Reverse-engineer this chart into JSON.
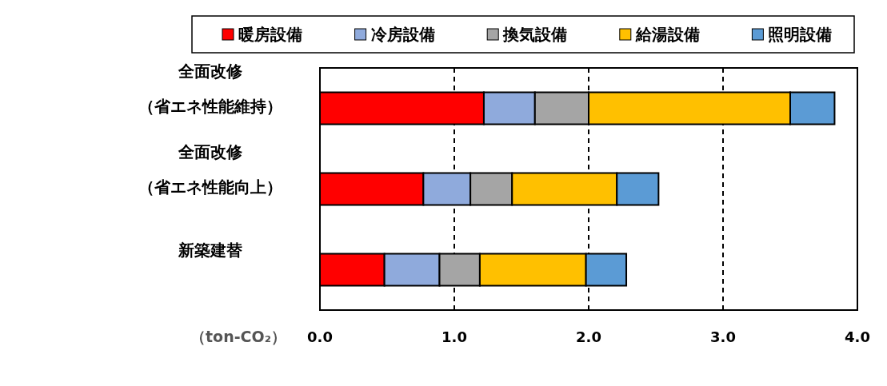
{
  "chart_data": {
    "type": "bar",
    "orientation": "horizontal",
    "stacked": true,
    "categories": [
      "全面改修（省エネ性能維持）",
      "全面改修（省エネ性能向上）",
      "新築建替"
    ],
    "series": [
      {
        "name": "暖房設備",
        "color": "#ff0000",
        "values": [
          1.22,
          0.77,
          0.48
        ]
      },
      {
        "name": "冷房設備",
        "color": "#8faadc",
        "values": [
          0.38,
          0.35,
          0.41
        ]
      },
      {
        "name": "換気設備",
        "color": "#a5a5a5",
        "values": [
          0.4,
          0.31,
          0.3
        ]
      },
      {
        "name": "給湯設備",
        "color": "#ffc000",
        "values": [
          1.5,
          0.78,
          0.79
        ]
      },
      {
        "name": "照明設備",
        "color": "#5b9bd5",
        "values": [
          0.33,
          0.31,
          0.3
        ]
      }
    ],
    "xlabel": "（ton-CO₂）",
    "xlim": [
      0,
      4
    ],
    "xticks": [
      {
        "value": 0,
        "label": "0.0"
      },
      {
        "value": 1,
        "label": "1.0"
      },
      {
        "value": 2,
        "label": "2.0"
      },
      {
        "value": 3,
        "label": "3.0"
      },
      {
        "value": 4,
        "label": "4.0"
      }
    ],
    "grid": "x",
    "line_style": "dashed",
    "legend": "top"
  }
}
